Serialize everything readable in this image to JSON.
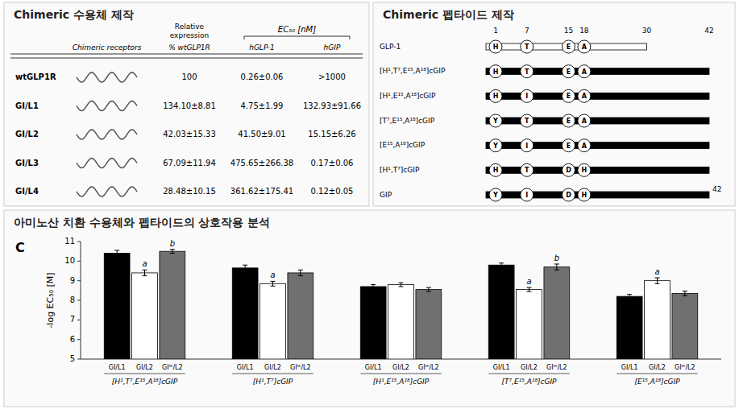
{
  "chart_data": [
    {
      "type": "table",
      "title": "Chimeric 수용체 제작",
      "headers": {
        "receptor": "Chimeric receptors",
        "expression": "Relative\nexpression",
        "expression_unit": "% wtGLP1R",
        "ec50": "EC₅₀ [nM]",
        "hglp1": "hGLP-1",
        "hgip": "hGIP"
      },
      "rows": [
        {
          "name": "wtGLP1R",
          "expression": "100",
          "hglp1": "0.26±0.06",
          "hgip": ">1000"
        },
        {
          "name": "GI/L1",
          "expression": "134.10±8.81",
          "hglp1": "4.75±1.99",
          "hgip": "132.93±91.66"
        },
        {
          "name": "GI/L2",
          "expression": "42.03±15.33",
          "hglp1": "41.50±9.01",
          "hgip": "15.15±6.26"
        },
        {
          "name": "GI/L3",
          "expression": "67.09±11.94",
          "hglp1": "475.65±266.38",
          "hgip": "0.17±0.06"
        },
        {
          "name": "GI/L4",
          "expression": "28.48±10.15",
          "hglp1": "361.62±175.41",
          "hgip": "0.12±0.05"
        }
      ]
    },
    {
      "type": "diagram",
      "title": "Chimeric 펩타이드 제작",
      "ticks": [
        1,
        7,
        15,
        18,
        30,
        42
      ],
      "residues": [
        1,
        7,
        15,
        18
      ],
      "peptides": [
        {
          "name": "GLP-1",
          "letters": [
            "H",
            "T",
            "E",
            "A"
          ],
          "length": 30,
          "color": "white"
        },
        {
          "name": "[H¹,T⁷,E¹⁵,A¹⁸]cGIP",
          "letters": [
            "H",
            "T",
            "E",
            "A"
          ],
          "length": 42,
          "color": "black"
        },
        {
          "name": "[H¹,E¹⁵,A¹⁸]cGIP",
          "letters": [
            "H",
            "I",
            "E",
            "A"
          ],
          "length": 42,
          "color": "black"
        },
        {
          "name": "[T⁷,E¹⁵,A¹⁸]cGIP",
          "letters": [
            "Y",
            "T",
            "E",
            "A"
          ],
          "length": 42,
          "color": "black"
        },
        {
          "name": "[E¹⁵,A¹⁸]cGIP",
          "letters": [
            "Y",
            "I",
            "E",
            "A"
          ],
          "length": 42,
          "color": "black"
        },
        {
          "name": "[H¹,T⁷]cGIP",
          "letters": [
            "H",
            "T",
            "D",
            "H"
          ],
          "length": 42,
          "color": "black"
        },
        {
          "name": "GIP",
          "letters": [
            "Y",
            "I",
            "D",
            "H"
          ],
          "length": 42,
          "color": "black",
          "end_label": 42
        }
      ]
    },
    {
      "type": "bar",
      "title": "아미노산 치환 수용체와 펩타이드의 상호작용 분석",
      "panel_label": "C",
      "ylabel": "-log EC₅₀ [M]",
      "categories": [
        "[H¹,T⁷,E¹⁵,A¹⁸]cGIP",
        "[H¹,T⁷]cGIP",
        "[H¹,E¹⁵,A¹⁸]cGIP",
        "[T⁷,E¹⁵,A¹⁸]cGIP",
        "[E¹⁵,A¹⁸]cGIP"
      ],
      "series": [
        {
          "name": "GI/L1",
          "color": "black",
          "values": [
            10.4,
            9.65,
            8.7,
            9.8,
            8.2
          ],
          "errors": [
            0.15,
            0.15,
            0.1,
            0.1,
            0.1
          ],
          "annotations": [
            null,
            null,
            null,
            null,
            null
          ]
        },
        {
          "name": "GI/L2",
          "color": "white",
          "values": [
            9.4,
            8.85,
            8.8,
            8.55,
            9.0
          ],
          "errors": [
            0.15,
            0.12,
            0.1,
            0.1,
            0.15
          ],
          "annotations": [
            "a",
            "a",
            null,
            "a",
            "a"
          ]
        },
        {
          "name": "GIᴵᴷ/L2",
          "color": "#707070",
          "values": [
            10.5,
            9.4,
            8.55,
            9.7,
            8.35
          ],
          "errors": [
            0.1,
            0.15,
            0.1,
            0.15,
            0.12
          ],
          "annotations": [
            "b",
            null,
            null,
            "b",
            null
          ]
        }
      ],
      "ylim": [
        5,
        11
      ],
      "yticks": [
        5,
        6,
        7,
        8,
        9,
        10,
        11
      ],
      "grid": false
    }
  ]
}
